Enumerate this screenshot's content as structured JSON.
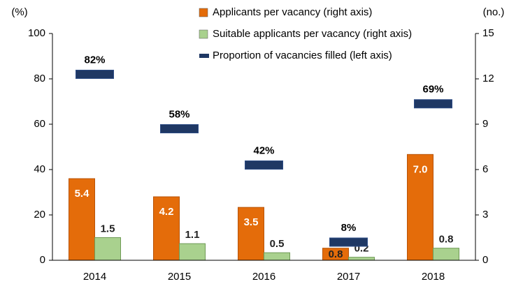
{
  "chart_data": {
    "type": "bar",
    "ylabel": "(%)",
    "y2label": "(no.)",
    "categories": [
      "2014",
      "2015",
      "2016",
      "2017",
      "2018"
    ],
    "series": [
      {
        "name": "Applicants per vacancy (right axis)",
        "color": "#e46c0a",
        "axis": "y2",
        "values": [
          5.4,
          4.2,
          3.5,
          0.8,
          7.0
        ],
        "value_labels": [
          "5.4",
          "4.2",
          "3.5",
          "0.8",
          "7.0"
        ]
      },
      {
        "name": "Suitable applicants per vacancy (right axis)",
        "color": "#a9d18e",
        "axis": "y2",
        "values": [
          1.5,
          1.1,
          0.5,
          0.2,
          0.8
        ],
        "value_labels": [
          "1.5",
          "1.1",
          "0.5",
          "0.2",
          "0.8"
        ]
      },
      {
        "name": "Proportion of vacancies filled (left axis)",
        "color": "#1f3864",
        "axis": "y",
        "values": [
          82,
          58,
          42,
          8,
          69
        ],
        "value_labels": [
          "82%",
          "58%",
          "42%",
          "8%",
          "69%"
        ]
      }
    ],
    "ylim": [
      0,
      100
    ],
    "yticks": [
      0,
      20,
      40,
      60,
      80,
      100
    ],
    "y2lim": [
      0,
      15
    ],
    "y2ticks": [
      0,
      3,
      6,
      9,
      12,
      15
    ]
  }
}
